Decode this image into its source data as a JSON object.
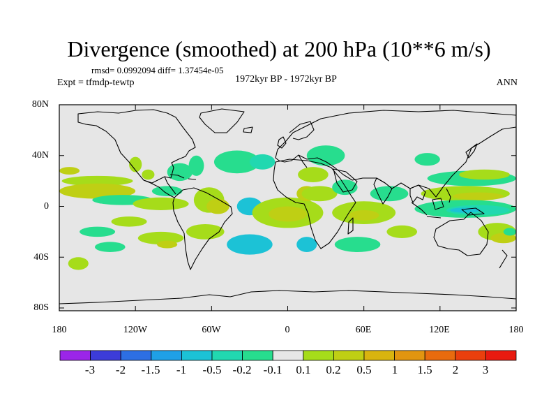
{
  "plot": {
    "title": "Divergence (smoothed) at 200 hPa (10**6 m/s)",
    "stats": "rmsd= 0.0992094 diff= 1.37454e-05",
    "expt": "Expt = tfmdp-tewtp",
    "center_label": "1972kyr BP - 1972kyr BP",
    "season": "ANN"
  },
  "axes": {
    "lat_ticks": [
      {
        "label": "80N",
        "value": 80
      },
      {
        "label": "40N",
        "value": 40
      },
      {
        "label": "0",
        "value": 0
      },
      {
        "label": "40S",
        "value": -40
      },
      {
        "label": "80S",
        "value": -80
      }
    ],
    "lon_ticks": [
      {
        "label": "180",
        "value": -180
      },
      {
        "label": "120W",
        "value": -120
      },
      {
        "label": "60W",
        "value": -60
      },
      {
        "label": "0",
        "value": 0
      },
      {
        "label": "60E",
        "value": 60
      },
      {
        "label": "120E",
        "value": 120
      },
      {
        "label": "180",
        "value": 180
      }
    ]
  },
  "colorbar": {
    "labels": [
      "-3",
      "-2",
      "-1.5",
      "-1",
      "-0.5",
      "-0.2",
      "-0.1",
      "0.1",
      "0.2",
      "0.5",
      "1",
      "1.5",
      "2",
      "3"
    ],
    "colors": [
      "#9b25e8",
      "#3c3cd9",
      "#2d6fe3",
      "#1fa0e6",
      "#1cc2d6",
      "#21d8b0",
      "#27dd8e",
      "#e6e6e6",
      "#a6dc1a",
      "#bfcf14",
      "#d9b40f",
      "#e29510",
      "#e86b0e",
      "#ea3f0d",
      "#e81a10"
    ]
  },
  "fields": [
    {
      "lon": -150,
      "lat": 20,
      "rlon": 28,
      "rlat": 4,
      "color": "#a6dc1a"
    },
    {
      "lon": -150,
      "lat": 12,
      "rlon": 30,
      "rlat": 6,
      "color": "#bfcf14"
    },
    {
      "lon": -172,
      "lat": 28,
      "rlon": 8,
      "rlat": 3,
      "color": "#bfcf14"
    },
    {
      "lon": -120,
      "lat": 33,
      "rlon": 5,
      "rlat": 6,
      "color": "#a6dc1a"
    },
    {
      "lon": -110,
      "lat": 25,
      "rlon": 5,
      "rlat": 4,
      "color": "#a6dc1a"
    },
    {
      "lon": -130,
      "lat": 5,
      "rlon": 24,
      "rlat": 4,
      "color": "#27dd8e"
    },
    {
      "lon": -100,
      "lat": 2,
      "rlon": 22,
      "rlat": 5,
      "color": "#a6dc1a"
    },
    {
      "lon": -95,
      "lat": 12,
      "rlon": 12,
      "rlat": 4,
      "color": "#27dd8e"
    },
    {
      "lon": -125,
      "lat": -12,
      "rlon": 14,
      "rlat": 4,
      "color": "#a6dc1a"
    },
    {
      "lon": -150,
      "lat": -20,
      "rlon": 14,
      "rlat": 4,
      "color": "#27dd8e"
    },
    {
      "lon": -140,
      "lat": -32,
      "rlon": 12,
      "rlat": 4,
      "color": "#27dd8e"
    },
    {
      "lon": -100,
      "lat": -25,
      "rlon": 18,
      "rlat": 5,
      "color": "#a6dc1a"
    },
    {
      "lon": -95,
      "lat": -30,
      "rlon": 8,
      "rlat": 3,
      "color": "#bfcf14"
    },
    {
      "lon": -165,
      "lat": -45,
      "rlon": 8,
      "rlat": 5,
      "color": "#a6dc1a"
    },
    {
      "lon": -85,
      "lat": 27,
      "rlon": 10,
      "rlat": 7,
      "color": "#27dd8e"
    },
    {
      "lon": -72,
      "lat": 32,
      "rlon": 6,
      "rlat": 8,
      "color": "#27dd8e"
    },
    {
      "lon": -62,
      "lat": 5,
      "rlon": 12,
      "rlat": 10,
      "color": "#a6dc1a"
    },
    {
      "lon": -55,
      "lat": 0,
      "rlon": 9,
      "rlat": 6,
      "color": "#bfcf14"
    },
    {
      "lon": -65,
      "lat": -20,
      "rlon": 15,
      "rlat": 6,
      "color": "#a6dc1a"
    },
    {
      "lon": -40,
      "lat": 35,
      "rlon": 18,
      "rlat": 9,
      "color": "#27dd8e"
    },
    {
      "lon": -20,
      "lat": 35,
      "rlon": 10,
      "rlat": 6,
      "color": "#21d8b0"
    },
    {
      "lon": -30,
      "lat": 0,
      "rlon": 10,
      "rlat": 7,
      "color": "#1cc2d6"
    },
    {
      "lon": -30,
      "lat": -30,
      "rlon": 18,
      "rlat": 8,
      "color": "#1cc2d6"
    },
    {
      "lon": 30,
      "lat": 40,
      "rlon": 15,
      "rlat": 8,
      "color": "#27dd8e"
    },
    {
      "lon": 20,
      "lat": 25,
      "rlon": 12,
      "rlat": 6,
      "color": "#a6dc1a"
    },
    {
      "lon": 0,
      "lat": -5,
      "rlon": 28,
      "rlat": 12,
      "color": "#a6dc1a"
    },
    {
      "lon": 0,
      "lat": -6,
      "rlon": 15,
      "rlat": 6,
      "color": "#bfcf14"
    },
    {
      "lon": 15,
      "lat": 10,
      "rlon": 8,
      "rlat": 6,
      "color": "#bfcf14"
    },
    {
      "lon": 25,
      "lat": 10,
      "rlon": 14,
      "rlat": 6,
      "color": "#a6dc1a"
    },
    {
      "lon": 15,
      "lat": -30,
      "rlon": 8,
      "rlat": 6,
      "color": "#1cc2d6"
    },
    {
      "lon": 45,
      "lat": 15,
      "rlon": 10,
      "rlat": 6,
      "color": "#27dd8e"
    },
    {
      "lon": 60,
      "lat": -5,
      "rlon": 25,
      "rlat": 9,
      "color": "#a6dc1a"
    },
    {
      "lon": 60,
      "lat": -7,
      "rlon": 12,
      "rlat": 4,
      "color": "#bfcf14"
    },
    {
      "lon": 55,
      "lat": -30,
      "rlon": 18,
      "rlat": 6,
      "color": "#27dd8e"
    },
    {
      "lon": 80,
      "lat": 10,
      "rlon": 15,
      "rlat": 6,
      "color": "#27dd8e"
    },
    {
      "lon": 90,
      "lat": -20,
      "rlon": 12,
      "rlat": 5,
      "color": "#a6dc1a"
    },
    {
      "lon": 110,
      "lat": 37,
      "rlon": 10,
      "rlat": 5,
      "color": "#27dd8e"
    },
    {
      "lon": 145,
      "lat": 22,
      "rlon": 35,
      "rlat": 6,
      "color": "#27dd8e"
    },
    {
      "lon": 155,
      "lat": 25,
      "rlon": 20,
      "rlat": 4,
      "color": "#a6dc1a"
    },
    {
      "lon": 140,
      "lat": 10,
      "rlon": 35,
      "rlat": 6,
      "color": "#a6dc1a"
    },
    {
      "lon": 150,
      "lat": 8,
      "rlon": 20,
      "rlat": 3,
      "color": "#bfcf14"
    },
    {
      "lon": 140,
      "lat": -2,
      "rlon": 40,
      "rlat": 7,
      "color": "#27dd8e"
    },
    {
      "lon": 150,
      "lat": -3,
      "rlon": 25,
      "rlat": 4,
      "color": "#21d8b0"
    },
    {
      "lon": 140,
      "lat": -3,
      "rlon": 12,
      "rlat": 2,
      "color": "#1cc2d6"
    },
    {
      "lon": 165,
      "lat": -20,
      "rlon": 15,
      "rlat": 7,
      "color": "#a6dc1a"
    },
    {
      "lon": 170,
      "lat": -25,
      "rlon": 10,
      "rlat": 4,
      "color": "#bfcf14"
    },
    {
      "lon": 175,
      "lat": -20,
      "rlon": 5,
      "rlat": 3,
      "color": "#27dd8e"
    }
  ]
}
